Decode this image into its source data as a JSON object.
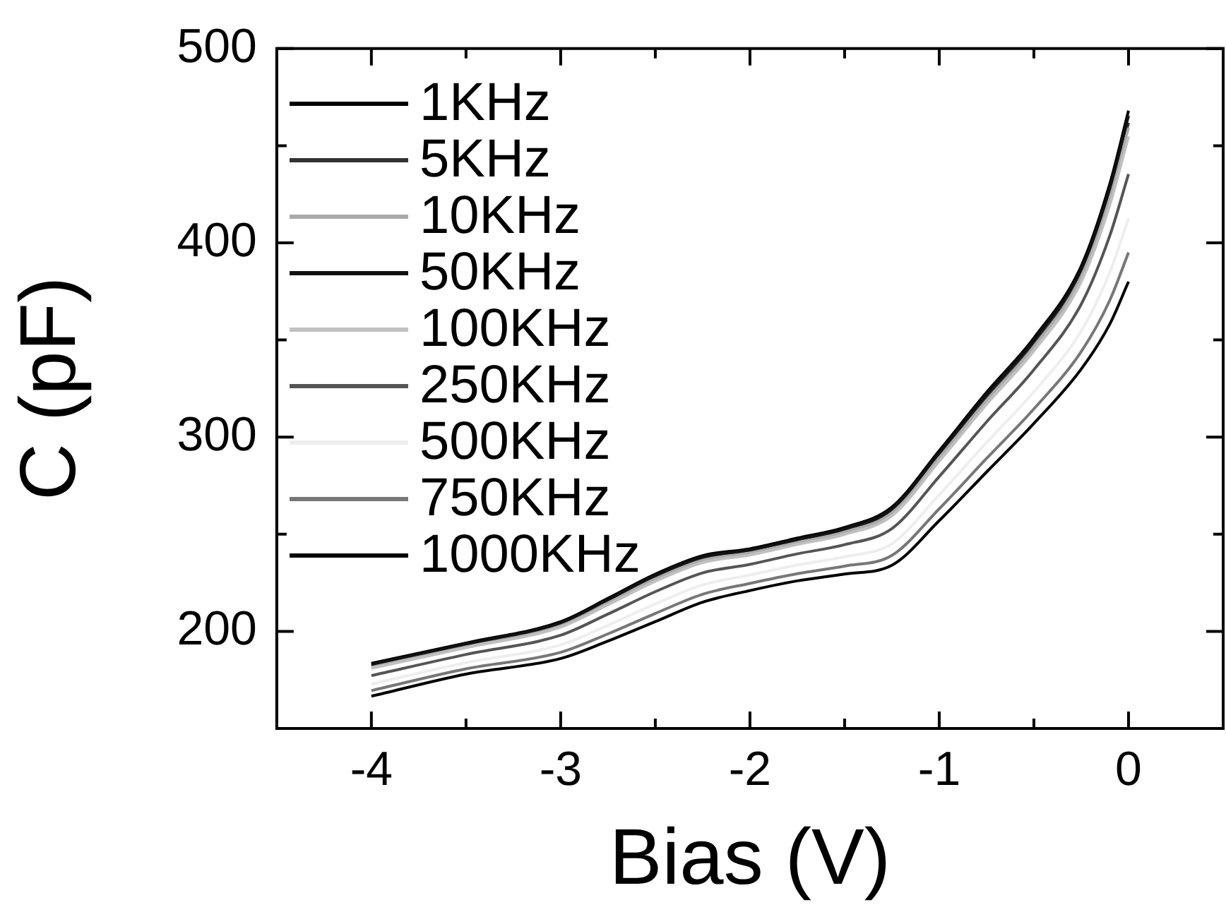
{
  "chart_data": {
    "type": "line",
    "xlabel": "Bias (V)",
    "ylabel": "C (pF)",
    "x": [
      -4,
      -3.5,
      -3,
      -2.75,
      -2.5,
      -2.25,
      -2,
      -1.75,
      -1.5,
      -1.25,
      -1,
      -0.75,
      -0.5,
      -0.25,
      -0.1,
      0
    ],
    "series": [
      {
        "name": "1KHz",
        "color": "#000000",
        "values": [
          183.5,
          194,
          205,
          217,
          229.5,
          239,
          242.5,
          248,
          253.5,
          264,
          293,
          323,
          351,
          388,
          430,
          468
        ]
      },
      {
        "name": "5KHz",
        "color": "#333333",
        "values": [
          182.3,
          192.9,
          203.7,
          215.5,
          227.8,
          237.3,
          241,
          246.5,
          251.8,
          261.9,
          290.5,
          320.1,
          347.9,
          384.3,
          425,
          461.8
        ]
      },
      {
        "name": "10KHz",
        "color": "#aaaaaa",
        "values": [
          181.8,
          192.4,
          203.1,
          214.8,
          227,
          236.6,
          240.4,
          245.8,
          251.1,
          261,
          289.4,
          318.9,
          346.6,
          382.7,
          422.8,
          459.2
        ]
      },
      {
        "name": "50KHz",
        "color": "#111111",
        "values": [
          183,
          193.5,
          204.4,
          216.3,
          228.8,
          238.3,
          241.9,
          247.3,
          252.8,
          263.1,
          291.9,
          321.8,
          349.7,
          386.4,
          427.8,
          465.4
        ]
      },
      {
        "name": "100KHz",
        "color": "#c0c0c0",
        "values": [
          181,
          191.6,
          202.2,
          213.7,
          225.8,
          235.4,
          239.3,
          244.7,
          249.9,
          259.5,
          287.6,
          316.9,
          344.4,
          380,
          419.2,
          454.8
        ]
      },
      {
        "name": "250KHz",
        "color": "#555555",
        "values": [
          177.2,
          188.1,
          198,
          208.9,
          220.4,
          230.1,
          234.5,
          239.9,
          244.6,
          252.9,
          279.7,
          307.8,
          334.7,
          368.4,
          403.4,
          435.4
        ]
      },
      {
        "name": "500KHz",
        "color": "#eeeeee",
        "values": [
          172.9,
          183.9,
          193,
          203.1,
          214.1,
          223.9,
          229,
          234.1,
          238.4,
          245.1,
          270.3,
          297.2,
          323.3,
          354.6,
          384.6,
          412.6
        ]
      },
      {
        "name": "750KHz",
        "color": "#777777",
        "values": [
          169.5,
          180.7,
          189.2,
          198.7,
          209.2,
          219.1,
          224.7,
          229.7,
          233.6,
          239.1,
          263.1,
          289,
          314.5,
          344,
          370.2,
          395
        ]
      },
      {
        "name": "1000KHz",
        "color": "#000000",
        "values": [
          166.6,
          178,
          186,
          195,
          205,
          215,
          221,
          226,
          229.5,
          234,
          257,
          282,
          307,
          335,
          358,
          380
        ]
      }
    ],
    "xlim": [
      -4.5,
      0.5
    ],
    "xticks": [
      -4,
      {
        "value": -3.5,
        "label": null
      },
      -3,
      {
        "value": -2.5,
        "label": null
      },
      -2,
      {
        "value": -1.5,
        "label": null
      },
      -1,
      {
        "value": -0.5,
        "label": null
      },
      0
    ],
    "ylim": [
      150,
      500
    ],
    "yticks": [
      200,
      {
        "value": 250,
        "label": null
      },
      300,
      {
        "value": 350,
        "label": null
      },
      400,
      {
        "value": 450,
        "label": null
      },
      500
    ],
    "legend": "top left",
    "marker": "none",
    "line_style": "solid"
  }
}
